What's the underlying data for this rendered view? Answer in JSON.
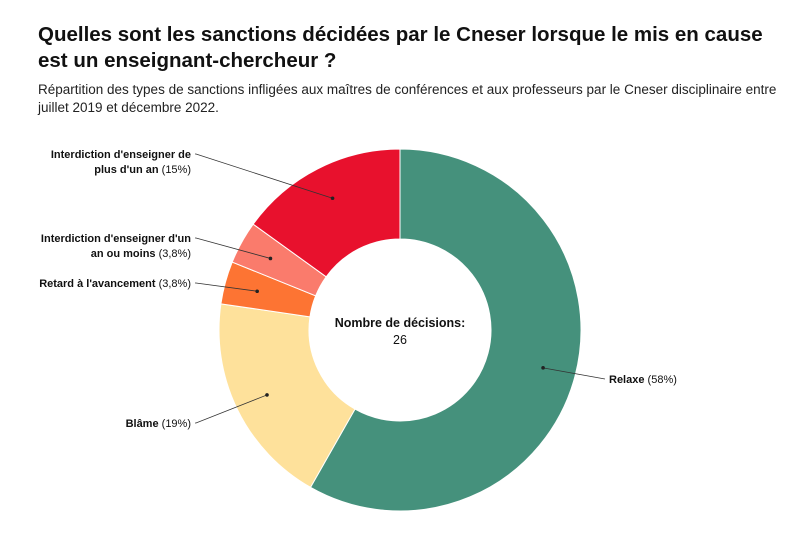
{
  "title": "Quelles sont les sanctions décidées par le Cneser lorsque le mis en cause est un enseignant-chercheur ?",
  "subtitle": "Répartition des types de sanctions infligées aux maîtres de conférences et aux professeurs par le Cneser disciplinaire entre juillet 2019 et décembre 2022.",
  "chart_data": {
    "type": "pie",
    "donut": true,
    "center_label": "Nombre de décisions:",
    "center_value": "26",
    "slices": [
      {
        "name": "Relaxe",
        "value_label": "(58%)",
        "value": 58,
        "color": "#45917c",
        "label_lines": [
          "Relaxe"
        ]
      },
      {
        "name": "Blâme",
        "value_label": "(19%)",
        "value": 19,
        "color": "#fee19b",
        "label_lines": [
          "Blâme"
        ]
      },
      {
        "name": "Retard à l'avancement",
        "value_label": "(3,8%)",
        "value": 3.8,
        "color": "#fd7433",
        "label_lines": [
          "Retard à l'avancement"
        ]
      },
      {
        "name": "Interdiction d'enseigner d'un an ou moins",
        "value_label": "(3,8%)",
        "value": 3.8,
        "color": "#fa7b6c",
        "label_lines": [
          "Interdiction d'enseigner d'un",
          "an ou moins"
        ]
      },
      {
        "name": "Interdiction d'enseigner de plus d'un an",
        "value_label": "(15%)",
        "value": 15,
        "color": "#e8112d",
        "label_lines": [
          "Interdiction d'enseigner de",
          "plus d'un an"
        ]
      }
    ]
  }
}
